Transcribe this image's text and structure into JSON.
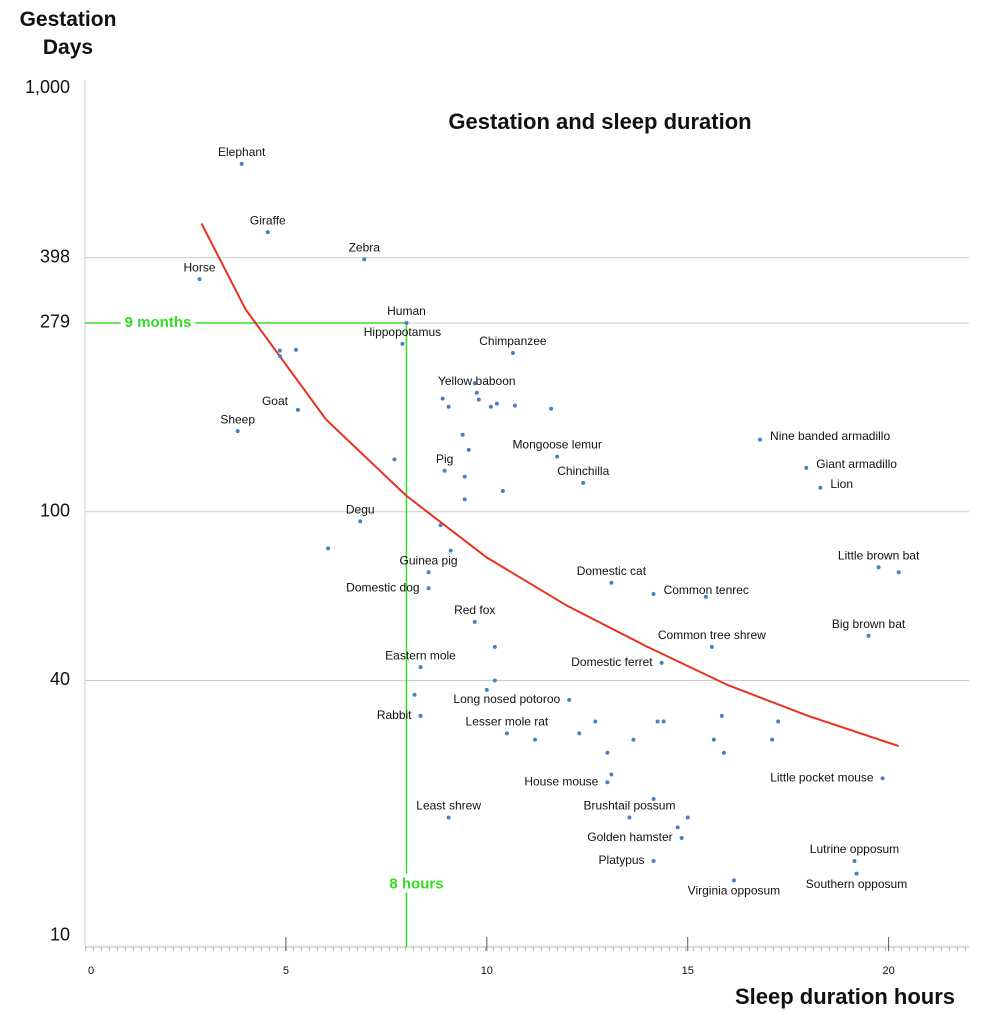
{
  "chart_data": {
    "type": "scatter",
    "title": "Gestation and sleep duration",
    "x_label": "Sleep duration hours",
    "y_label": "Gestation Days",
    "xlim": [
      0,
      22
    ],
    "xticks": [
      0,
      5,
      10,
      15,
      20
    ],
    "ylim": [
      9.4,
      1000
    ],
    "y_scale": "log",
    "yticks": [
      10,
      40,
      100,
      279,
      398,
      {
        "value": 1000,
        "label": "1,000"
      }
    ],
    "grid": true,
    "series": [
      {
        "color": "#4a7fc1",
        "labels": [
          "Elephant",
          "Giraffe",
          "Zebra",
          "Horse",
          "Human",
          "Hippopotamus",
          "Chimpanzee",
          null,
          null,
          null,
          "Yellow baboon",
          null,
          null,
          null,
          null,
          null,
          null,
          null,
          null,
          "Goat",
          "Sheep",
          null,
          null,
          "Mongoose lemur",
          "Nine banded armadillo",
          null,
          "Pig",
          null,
          "Giant armadillo",
          "Chinchilla",
          "Lion",
          null,
          null,
          "Degu",
          null,
          null,
          null,
          "Little brown bat",
          null,
          "Guinea pig",
          "Domestic dog",
          "Domestic cat",
          "Common tenrec",
          null,
          "Red fox",
          "Big brown bat",
          "Common tree shrew",
          null,
          "Domestic ferret",
          "Eastern mole",
          null,
          null,
          "Long nosed potoroo",
          null,
          "Rabbit",
          null,
          null,
          null,
          null,
          null,
          "Lesser mole rat",
          null,
          null,
          null,
          null,
          null,
          null,
          null,
          "Little pocket mouse",
          "House mouse",
          null,
          null,
          "Brushtail possum",
          null,
          "Least shrew",
          null,
          "Golden hamster",
          "Platypus",
          "Lutrine opposum",
          "Southern opposum",
          "Virginia opposum"
        ],
        "x": [
          3.9,
          4.55,
          6.95,
          2.85,
          8,
          7.9,
          10.65,
          4.85,
          4.85,
          5.25,
          9.75,
          9.7,
          9.8,
          8.9,
          9.05,
          10.1,
          10.25,
          10.7,
          11.6,
          5.3,
          3.8,
          9.4,
          9.55,
          11.75,
          16.8,
          7.7,
          8.95,
          9.45,
          17.95,
          12.4,
          18.3,
          10.4,
          9.45,
          6.85,
          8.85,
          6.05,
          9.1,
          19.75,
          20.25,
          8.55,
          8.55,
          13.1,
          14.15,
          15.45,
          9.7,
          19.5,
          15.6,
          10.2,
          14.35,
          8.35,
          10.2,
          10,
          12.05,
          8.2,
          8.35,
          12.7,
          14.25,
          14.4,
          15.85,
          17.25,
          10.5,
          12.3,
          13.65,
          11.2,
          15.65,
          17.1,
          13,
          15.9,
          19.85,
          13,
          13.1,
          14.15,
          13.55,
          15,
          9.05,
          14.75,
          14.85,
          14.15,
          19.15,
          19.2,
          16.15
        ],
        "values": [
          662,
          457,
          394,
          354,
          279,
          249,
          237,
          240,
          233,
          241,
          191,
          201,
          184,
          185,
          177,
          177,
          180,
          178,
          175,
          174,
          155,
          152,
          140,
          135,
          148,
          133,
          125,
          121,
          127,
          117,
          114,
          112,
          107,
          95,
          93,
          82,
          81,
          74,
          72,
          72,
          66,
          68,
          64,
          63,
          55,
          51,
          48,
          48,
          44,
          43,
          40,
          38,
          36,
          37,
          33,
          32,
          32,
          32,
          33,
          32,
          30,
          30,
          29,
          29,
          29,
          29,
          27,
          27,
          23.5,
          23,
          24,
          21,
          19,
          19,
          19,
          18,
          17,
          15,
          15,
          14,
          13.5
        ]
      }
    ],
    "trend": {
      "color": "#e8311e",
      "x": [
        2.9,
        4,
        6,
        8,
        10,
        12,
        14,
        16,
        18,
        20.25
      ],
      "values": [
        479,
        300,
        165,
        109,
        78,
        60,
        48,
        39,
        33,
        28
      ]
    },
    "reference_color": "#33dd22",
    "reference_lines": [
      {
        "label": "9 months",
        "value": 279
      },
      {
        "label": "8 hours",
        "value": 8
      }
    ]
  }
}
